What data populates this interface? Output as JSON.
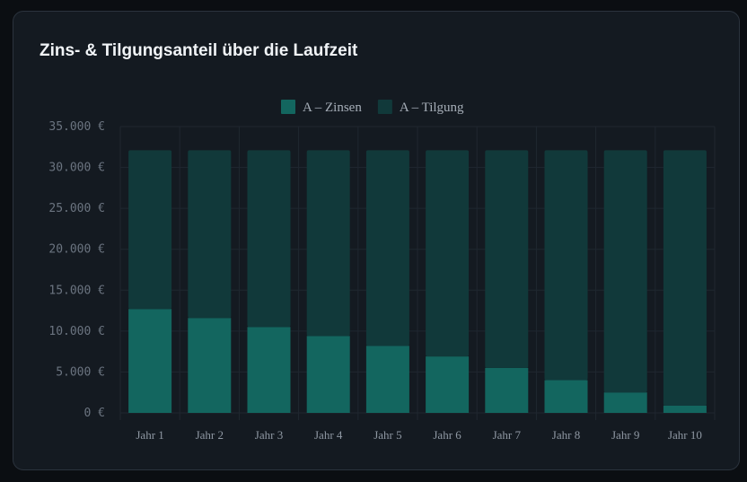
{
  "card": {
    "title": "Zins- & Tilgungsanteil über die Laufzeit"
  },
  "chart_data": {
    "type": "bar",
    "stacked": true,
    "title": "Zins- & Tilgungsanteil über die Laufzeit",
    "xlabel": "",
    "ylabel": "",
    "categories": [
      "Jahr 1",
      "Jahr 2",
      "Jahr 3",
      "Jahr 4",
      "Jahr 5",
      "Jahr 6",
      "Jahr 7",
      "Jahr 8",
      "Jahr 9",
      "Jahr 10"
    ],
    "series": [
      {
        "name": "A – Zinsen",
        "color": "#13665f",
        "values": [
          12700,
          11600,
          10500,
          9400,
          8200,
          6900,
          5500,
          4000,
          2500,
          900
        ]
      },
      {
        "name": "A – Tilgung",
        "color": "#11393a",
        "values": [
          19400,
          20500,
          21600,
          22700,
          23900,
          25200,
          26600,
          28100,
          29600,
          31200
        ]
      }
    ],
    "ylim": [
      0,
      35000
    ],
    "yticks": [
      0,
      5000,
      10000,
      15000,
      20000,
      25000,
      30000,
      35000
    ],
    "ytick_labels": [
      "0 €",
      "5.000 €",
      "10.000 €",
      "15.000 €",
      "20.000 €",
      "25.000 €",
      "30.000 €",
      "35.000 €"
    ],
    "legend_position": "top-center",
    "grid": true
  }
}
